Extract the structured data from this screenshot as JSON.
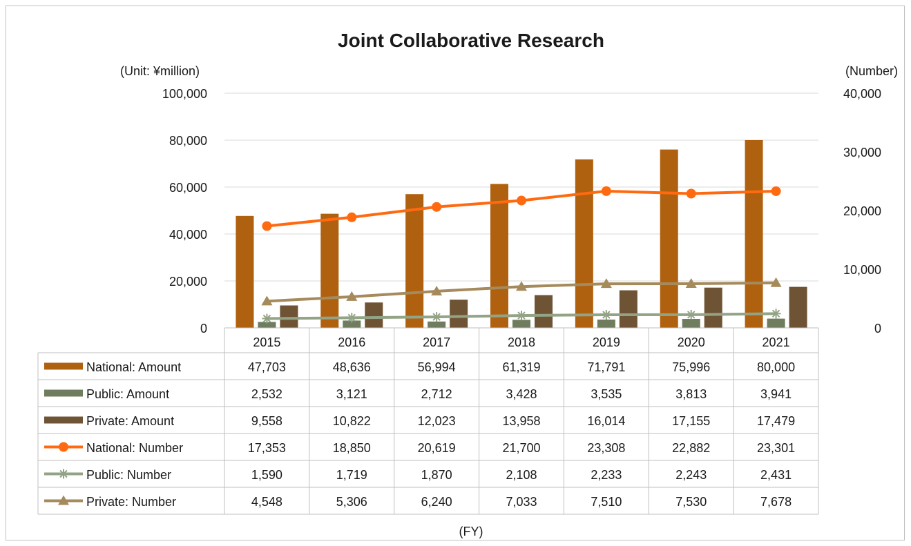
{
  "chart_data": {
    "type": "bar",
    "combo": "bar+line with data table",
    "title": "Joint Collaborative Research",
    "ylabel_left": "(Unit: ¥million)",
    "ylabel_right": "(Number)",
    "xlabel": "(FY)",
    "categories": [
      "2015",
      "2016",
      "2017",
      "2018",
      "2019",
      "2020",
      "2021"
    ],
    "ylim_left": [
      0,
      100000
    ],
    "yticks_left": [
      "0",
      "20,000",
      "40,000",
      "60,000",
      "80,000",
      "100,000"
    ],
    "ylim_right": [
      0,
      40000
    ],
    "yticks_right": [
      "0",
      "10,000",
      "20,000",
      "30,000",
      "40,000"
    ],
    "grid": true,
    "legend_placement": "table-left",
    "series": [
      {
        "name": "National: Amount",
        "type": "bar",
        "axis": "left",
        "color": "#b0610f",
        "values": [
          47703,
          48636,
          56994,
          61319,
          71791,
          75996,
          80000
        ],
        "labels": [
          "47,703",
          "48,636",
          "56,994",
          "61,319",
          "71,791",
          "75,996",
          "80,000"
        ]
      },
      {
        "name": "Public: Amount",
        "type": "bar",
        "axis": "left",
        "color": "#6f7c5e",
        "values": [
          2532,
          3121,
          2712,
          3428,
          3535,
          3813,
          3941
        ],
        "labels": [
          "2,532",
          "3,121",
          "2,712",
          "3,428",
          "3,535",
          "3,813",
          "3,941"
        ]
      },
      {
        "name": "Private: Amount",
        "type": "bar",
        "axis": "left",
        "color": "#6e5434",
        "values": [
          9558,
          10822,
          12023,
          13958,
          16014,
          17155,
          17479
        ],
        "labels": [
          "9,558",
          "10,822",
          "12,023",
          "13,958",
          "16,014",
          "17,155",
          "17,479"
        ]
      },
      {
        "name": "National: Number",
        "type": "line",
        "marker": "circle",
        "axis": "right",
        "color": "#ff6a10",
        "values": [
          17353,
          18850,
          20619,
          21700,
          23308,
          22882,
          23301
        ],
        "labels": [
          "17,353",
          "18,850",
          "20,619",
          "21,700",
          "23,308",
          "22,882",
          "23,301"
        ]
      },
      {
        "name": "Public: Number",
        "type": "line",
        "marker": "star",
        "axis": "right",
        "color": "#93a386",
        "values": [
          1590,
          1719,
          1870,
          2108,
          2233,
          2243,
          2431
        ],
        "labels": [
          "1,590",
          "1,719",
          "1,870",
          "2,108",
          "2,233",
          "2,243",
          "2,431"
        ]
      },
      {
        "name": "Private: Number",
        "type": "line",
        "marker": "triangle",
        "axis": "right",
        "color": "#a58a5c",
        "values": [
          4548,
          5306,
          6240,
          7033,
          7510,
          7530,
          7678
        ],
        "labels": [
          "4,548",
          "5,306",
          "6,240",
          "7,033",
          "7,510",
          "7,530",
          "7,678"
        ]
      }
    ]
  }
}
